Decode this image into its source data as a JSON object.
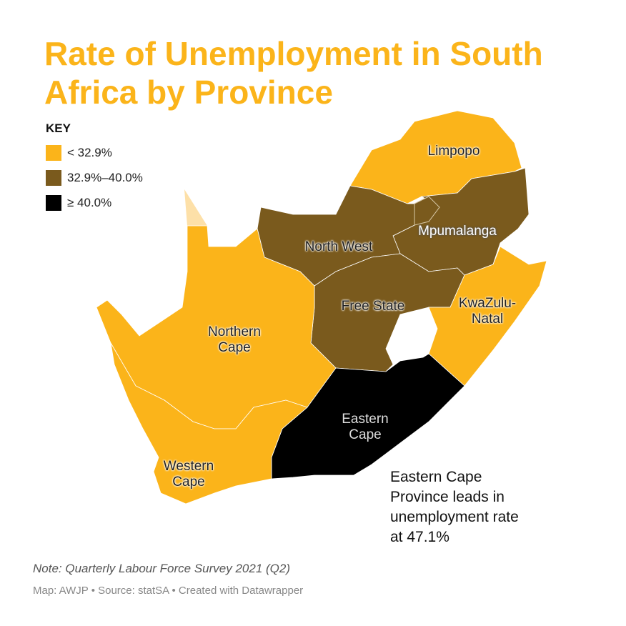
{
  "title": "Rate of Unemployment in South Africa by Province",
  "key": {
    "title": "KEY",
    "items": [
      {
        "label": "< 32.9%",
        "color": "#fbb41a"
      },
      {
        "label": "32.9%–40.0%",
        "color": "#7a5a1d"
      },
      {
        "label": "≥ 40.0%",
        "color": "#000000"
      }
    ]
  },
  "provinces": [
    {
      "label": "Limpopo",
      "color": "#fbb41a"
    },
    {
      "label": "Mpumalanga",
      "color": "#7a5a1d"
    },
    {
      "label": "North West",
      "color": "#7a5a1d"
    },
    {
      "label": "Free State",
      "color": "#7a5a1d"
    },
    {
      "label": "KwaZulu-Natal",
      "color": "#fbb41a"
    },
    {
      "label": "Northern Cape",
      "color": "#fbb41a"
    },
    {
      "label": "Eastern Cape",
      "color": "#000000"
    },
    {
      "label": "Western Cape",
      "color": "#fbb41a"
    }
  ],
  "annotation": "Eastern Cape Province leads in unemployment rate at 47.1%",
  "note": "Note: Quarterly Labour Force Survey 2021 (Q2)",
  "credit": "Map: AWJP • Source: statSA • Created with Datawrapper"
}
